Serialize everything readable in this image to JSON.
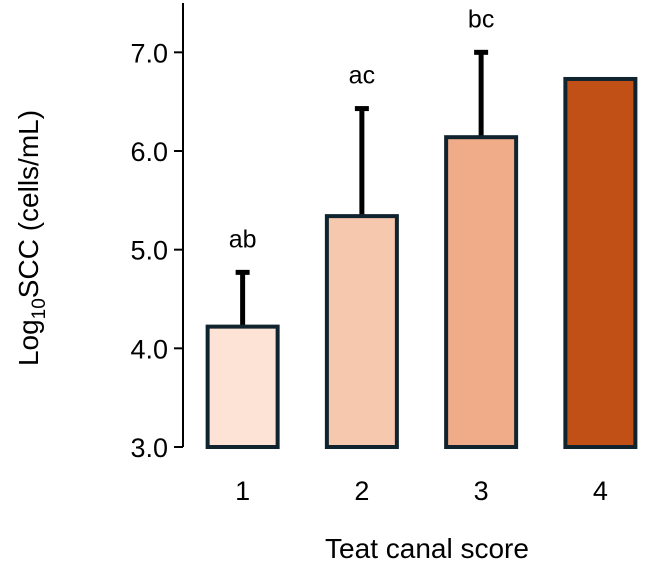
{
  "chart_data": {
    "type": "bar",
    "title": "",
    "xlabel": "Teat canal score",
    "ylabel": {
      "prefix": "Log",
      "subscript": "10",
      "suffix": "SCC (cells/mL)"
    },
    "ylim": [
      3.0,
      7.5
    ],
    "yticks": [
      "3.0",
      "4.0",
      "5.0",
      "6.0",
      "7.0"
    ],
    "grid": false,
    "categories": [
      "1",
      "2",
      "3",
      "4"
    ],
    "values": [
      4.22,
      5.34,
      6.14,
      6.73
    ],
    "error_upper": [
      4.77,
      6.43,
      7.0,
      null
    ],
    "significance_labels": [
      "ab",
      "ac",
      "bc",
      ""
    ],
    "colors": [
      "#FCE3D5",
      "#F6C8AE",
      "#F0AB88",
      "#C15016"
    ],
    "edge_color": "#10242F"
  }
}
